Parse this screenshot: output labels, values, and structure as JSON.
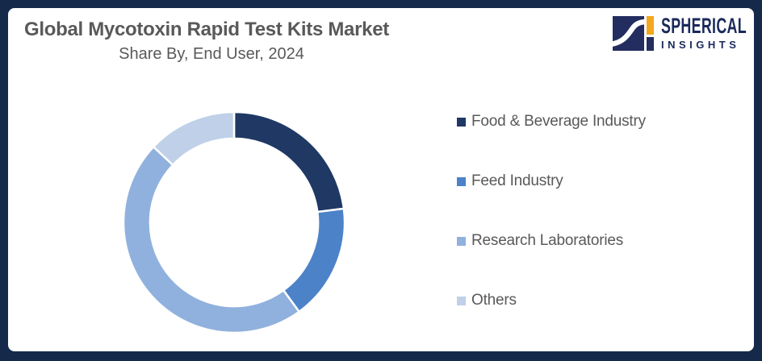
{
  "frame": {
    "border_color": "#152A4A",
    "panel_color": "#FFFFFF"
  },
  "logo": {
    "name": "SPHERICAL",
    "tagline": "INSIGHTS",
    "text_color": "#1B2A5B",
    "icon": {
      "square_color": "#232D5F",
      "accent_color": "#F3A81E",
      "swoosh_color": "#FFFFFF"
    }
  },
  "chart_data": {
    "type": "pie",
    "variant": "donut",
    "title": "Global Mycotoxin Rapid Test Kits Market",
    "subtitle": "Share By, End User, 2024",
    "categories": [
      "Food & Beverage Industry",
      "Feed Industry",
      "Research Laboratories",
      "Others"
    ],
    "values": [
      23,
      17,
      47,
      13
    ],
    "unit": "%",
    "values_note": "Percentages estimated from arc angles; the chart displays no numeric data labels",
    "colors": [
      "#1F3864",
      "#4C82C8",
      "#90B1DD",
      "#BFD0E8"
    ],
    "start_angle_deg": 0,
    "direction": "clockwise",
    "inner_radius_ratio": 0.76,
    "segment_gap_color": "#FFFFFF",
    "legend_position": "right",
    "title_color": "#595959",
    "legend_text_color": "#595959"
  }
}
